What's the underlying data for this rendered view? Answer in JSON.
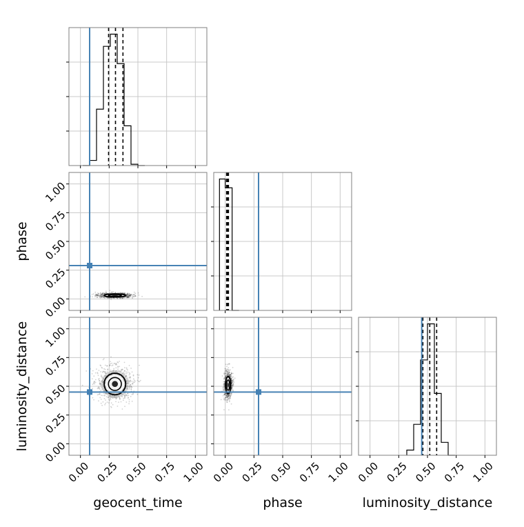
{
  "chart_data": {
    "type": "corner",
    "parameters": [
      "geocent_time",
      "phase",
      "luminosity_distance"
    ],
    "axis_range": [
      -0.1,
      1.1
    ],
    "tick_values": [
      0.0,
      0.25,
      0.5,
      0.75,
      1.0
    ],
    "tick_labels": [
      "0.00",
      "0.25",
      "0.50",
      "0.75",
      "1.00"
    ],
    "grid": true,
    "truth_color": "#4682b4",
    "truths": {
      "geocent_time": 0.08,
      "phase": 0.29,
      "luminosity_distance": 0.45
    },
    "histograms": {
      "geocent_time": {
        "bin_edges": [
          0.02,
          0.08,
          0.14,
          0.2,
          0.26,
          0.32,
          0.38,
          0.44,
          0.5,
          0.56
        ],
        "counts": [
          0,
          0.8,
          8.8,
          18.6,
          20.5,
          15.9,
          6.2,
          0.2,
          0
        ],
        "quantiles": [
          0.245,
          0.305,
          0.37
        ]
      },
      "phase": {
        "bin_edges": [
          -0.05,
          0.0,
          0.06,
          0.12
        ],
        "counts": [
          10.5,
          9.8,
          0
        ],
        "quantiles": [
          0.012,
          0.022,
          0.028
        ]
      },
      "luminosity_distance": {
        "bin_edges": [
          0.32,
          0.38,
          0.44,
          0.5,
          0.56,
          0.62,
          0.68,
          0.74
        ],
        "counts": [
          0.2,
          1.2,
          3.7,
          5.1,
          2.4,
          0.5,
          0
        ],
        "quantiles": [
          0.46,
          0.52,
          0.58
        ]
      }
    },
    "scatter_panels": [
      {
        "x": "geocent_time",
        "y": "phase",
        "center": [
          0.3,
          0.03
        ],
        "spread": [
          0.075,
          0.011
        ]
      },
      {
        "x": "geocent_time",
        "y": "luminosity_distance",
        "center": [
          0.3,
          0.52
        ],
        "spread": [
          0.075,
          0.075
        ]
      },
      {
        "x": "phase",
        "y": "luminosity_distance",
        "center": [
          0.025,
          0.51
        ],
        "spread": [
          0.018,
          0.06
        ]
      }
    ]
  }
}
